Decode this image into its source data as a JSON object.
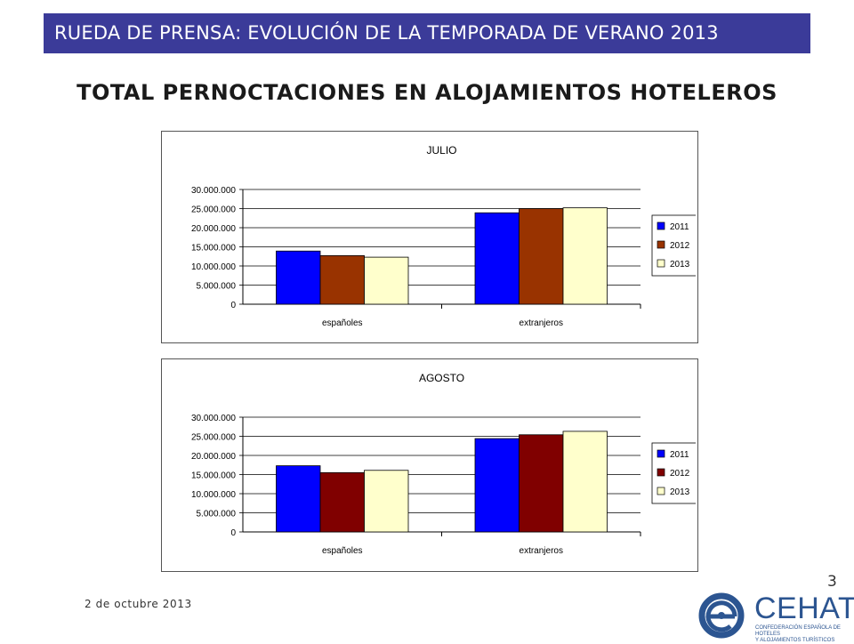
{
  "header": {
    "banner_text": "RUEDA DE PRENSA: EVOLUCIÓN DE LA TEMPORADA DE VERANO 2013",
    "main_title": "TOTAL PERNOCTACIONES EN ALOJAMIENTOS HOTELEROS"
  },
  "footer": {
    "date": "2 de octubre 2013",
    "page_number": "3",
    "logo_text": "CEHAT",
    "logo_subtext": "CONFEDERACIÓN ESPAÑOLA DE HOTELES\nY ALOJAMIENTOS TURÍSTICOS"
  },
  "chart_data": [
    {
      "type": "bar",
      "title": "JULIO",
      "categories": [
        "españoles",
        "extranjeros"
      ],
      "series": [
        {
          "name": "2011",
          "color": "#0000ff",
          "values": [
            13900000,
            23900000
          ]
        },
        {
          "name": "2012",
          "color": "#993300",
          "values": [
            12700000,
            25000000
          ]
        },
        {
          "name": "2013",
          "color": "#ffffcc",
          "values": [
            12300000,
            25200000
          ]
        }
      ],
      "ylim": [
        0,
        30000000
      ],
      "yticks": [
        "0",
        "5.000.000",
        "10.000.000",
        "15.000.000",
        "20.000.000",
        "25.000.000",
        "30.000.000"
      ],
      "grid": true,
      "legend": "right"
    },
    {
      "type": "bar",
      "title": "AGOSTO",
      "categories": [
        "españoles",
        "extranjeros"
      ],
      "series": [
        {
          "name": "2011",
          "color": "#0000ff",
          "values": [
            17300000,
            24400000
          ]
        },
        {
          "name": "2012",
          "color": "#800000",
          "values": [
            15500000,
            25400000
          ]
        },
        {
          "name": "2013",
          "color": "#ffffcc",
          "values": [
            16100000,
            26300000
          ]
        }
      ],
      "ylim": [
        0,
        30000000
      ],
      "yticks": [
        "0",
        "5.000.000",
        "10.000.000",
        "15.000.000",
        "20.000.000",
        "25.000.000",
        "30.000.000"
      ],
      "grid": true,
      "legend": "right"
    }
  ]
}
